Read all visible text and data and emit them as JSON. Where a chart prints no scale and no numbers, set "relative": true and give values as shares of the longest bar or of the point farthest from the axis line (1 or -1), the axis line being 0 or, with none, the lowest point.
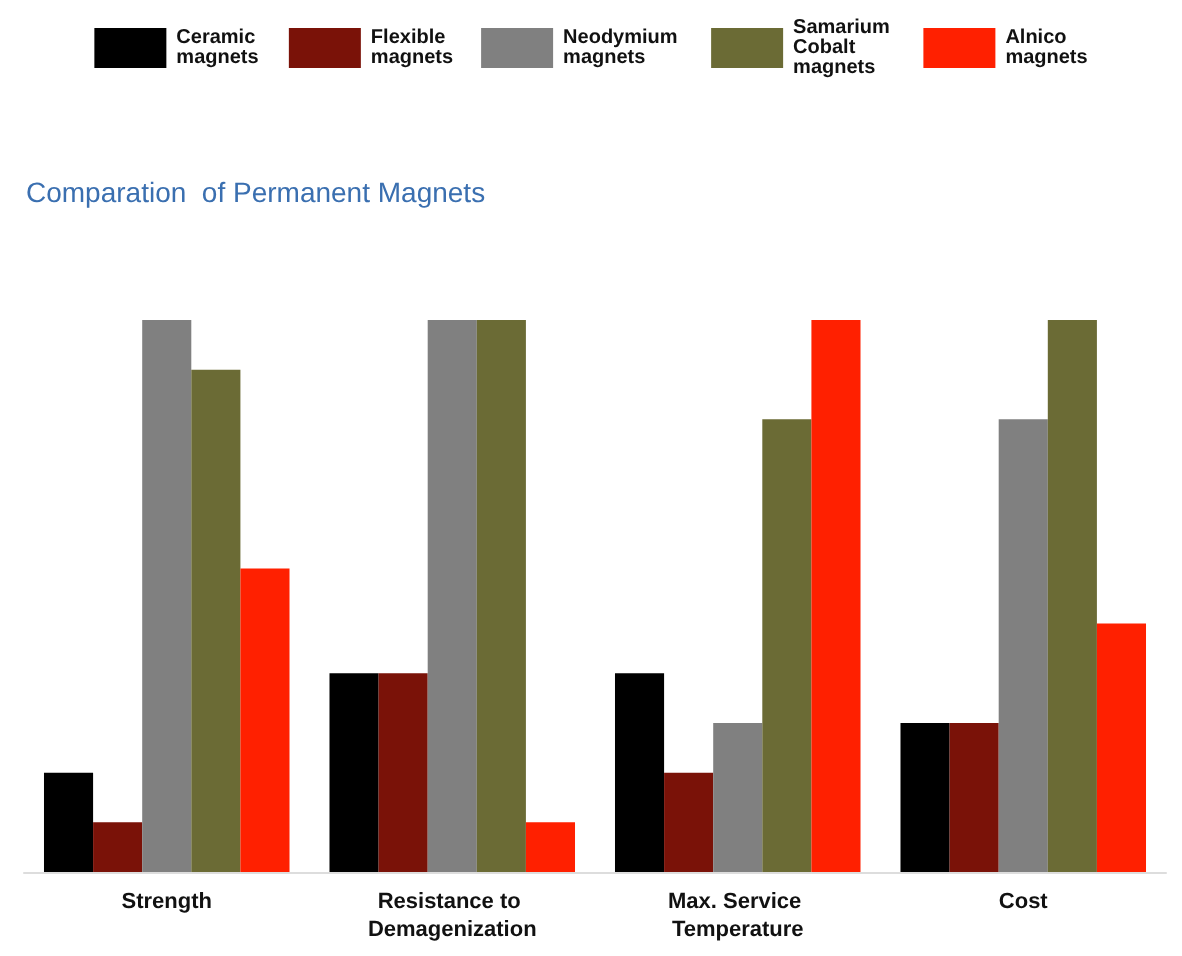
{
  "chart_data": {
    "type": "bar",
    "title": "Comparation  of Permanent Magnets",
    "relative": true,
    "legend": "top",
    "categories": [
      "Strength",
      "Resistance to Demagenization",
      "Max. Service Temperature",
      "Cost"
    ],
    "series": [
      {
        "name": "Ceramic magnets",
        "color": "#000000",
        "values": [
          0.18,
          0.36,
          0.36,
          0.27
        ]
      },
      {
        "name": "Flexible magnets",
        "color": "#7a1208",
        "values": [
          0.09,
          0.36,
          0.18,
          0.27
        ]
      },
      {
        "name": "Neodymium magnets",
        "color": "#808080",
        "values": [
          1,
          1,
          0.27,
          0.82
        ]
      },
      {
        "name": "Samarium Cobalt magnets",
        "color": "#6b6b35",
        "values": [
          0.91,
          1,
          0.82,
          1
        ]
      },
      {
        "name": "Alnico magnets",
        "color": "#ff2000",
        "values": [
          0.55,
          0.09,
          1,
          0.45
        ]
      }
    ]
  }
}
